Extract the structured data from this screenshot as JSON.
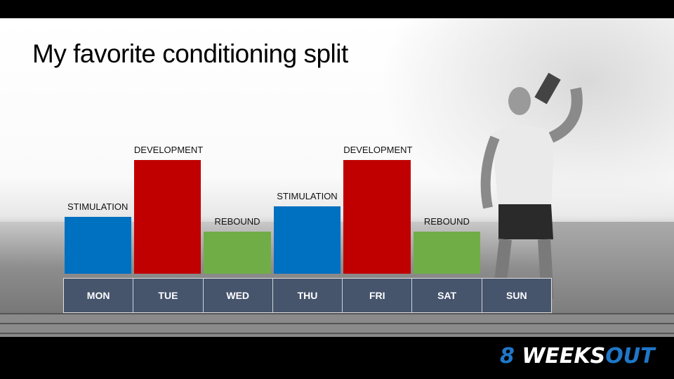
{
  "title": "My favorite conditioning split",
  "logo": {
    "number": "8",
    "word1": "WEEKS",
    "word2": "OUT",
    "colors": {
      "white": "#ffffff",
      "blue": "#1f77c8"
    }
  },
  "chart_data": {
    "type": "bar",
    "categories": [
      "MON",
      "TUE",
      "WED",
      "THU",
      "FRI",
      "SAT",
      "SUN"
    ],
    "values": [
      0.5,
      1,
      0.37,
      0.59,
      1,
      0.37,
      0
    ],
    "bar_labels": [
      "STIMULATION",
      "DEVELOPMENT",
      "REBOUND",
      "STIMULATION",
      "DEVELOPMENT",
      "REBOUND",
      ""
    ],
    "bar_colors": [
      "#0070c0",
      "#c00000",
      "#70ad47",
      "#0070c0",
      "#c00000",
      "#70ad47",
      ""
    ],
    "axes": "none",
    "grid": false,
    "legend": "none"
  }
}
